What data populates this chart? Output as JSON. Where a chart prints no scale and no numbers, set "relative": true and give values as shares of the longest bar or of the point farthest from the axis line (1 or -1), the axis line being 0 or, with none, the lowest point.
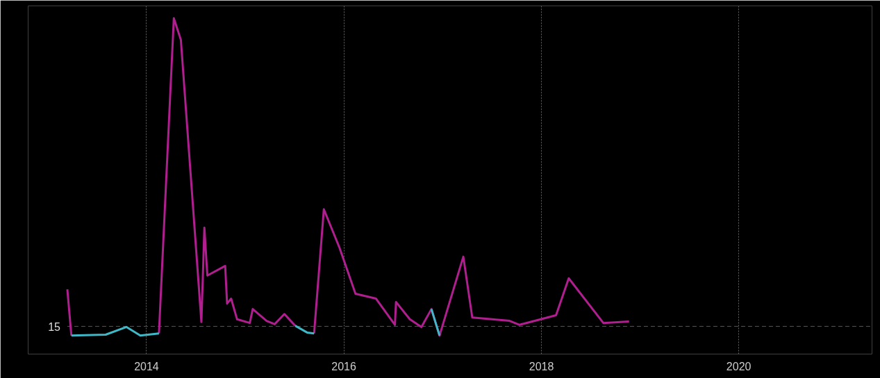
{
  "chart_data": {
    "type": "line",
    "relative": true,
    "x": [
      "2013-03-14",
      "2013-03-29",
      "2013-08-03",
      "2013-10-19",
      "2013-12-09",
      "2014-02-16",
      "2014-04-12",
      "2014-05-08",
      "2014-07-23",
      "2014-08-03",
      "2014-08-14",
      "2014-10-19",
      "2014-10-26",
      "2014-11-10",
      "2014-12-02",
      "2015-01-18",
      "2015-01-29",
      "2015-03-21",
      "2015-04-20",
      "2015-05-26",
      "2015-07-05",
      "2015-08-18",
      "2015-09-13",
      "2015-10-19",
      "2015-12-16",
      "2016-02-13",
      "2016-04-29",
      "2016-07-08",
      "2016-07-12",
      "2016-09-01",
      "2016-10-14",
      "2016-11-20",
      "2016-12-20",
      "2017-03-18",
      "2017-04-20",
      "2017-09-05",
      "2017-10-12",
      "2018-02-24",
      "2018-04-12",
      "2018-08-18",
      "2018-11-21"
    ],
    "series": [
      {
        "color": "#b01e90",
        "values": [
          0.12,
          -0.03,
          null,
          null,
          null,
          -0.023,
          1.0,
          0.93,
          0.014,
          0.32,
          0.165,
          0.196,
          0.074,
          0.09,
          0.023,
          0.011,
          0.056,
          0.018,
          0.007,
          0.04,
          0.002,
          null,
          -0.023,
          0.38,
          0.255,
          0.106,
          0.09,
          0.005,
          0.079,
          0.023,
          -0.002,
          0.056,
          -0.03,
          0.226,
          0.029,
          0.018,
          0.005,
          0.036,
          0.156,
          0.011,
          0.016
        ]
      },
      {
        "color": "#3fb8c8",
        "values": [
          null,
          -0.03,
          -0.027,
          -0.002,
          -0.03,
          -0.023,
          null,
          null,
          null,
          null,
          null,
          null,
          null,
          null,
          null,
          null,
          null,
          null,
          null,
          null,
          0.002,
          -0.02,
          -0.023,
          null,
          null,
          null,
          null,
          null,
          null,
          null,
          null,
          0.056,
          -0.03,
          null,
          null,
          null,
          null,
          null,
          null,
          null,
          null
        ]
      }
    ],
    "xlim": [
      "2012-10-20",
      "2021-05-08"
    ],
    "xticks": [
      "2014",
      "2016",
      "2018",
      "2020"
    ],
    "ref_lines": [
      {
        "axis": "y",
        "value": 0,
        "line_style": "dashed",
        "color": "#555555"
      }
    ],
    "annotations": [
      "15"
    ],
    "grid": "x",
    "line_style": "solid",
    "marker": "none"
  }
}
